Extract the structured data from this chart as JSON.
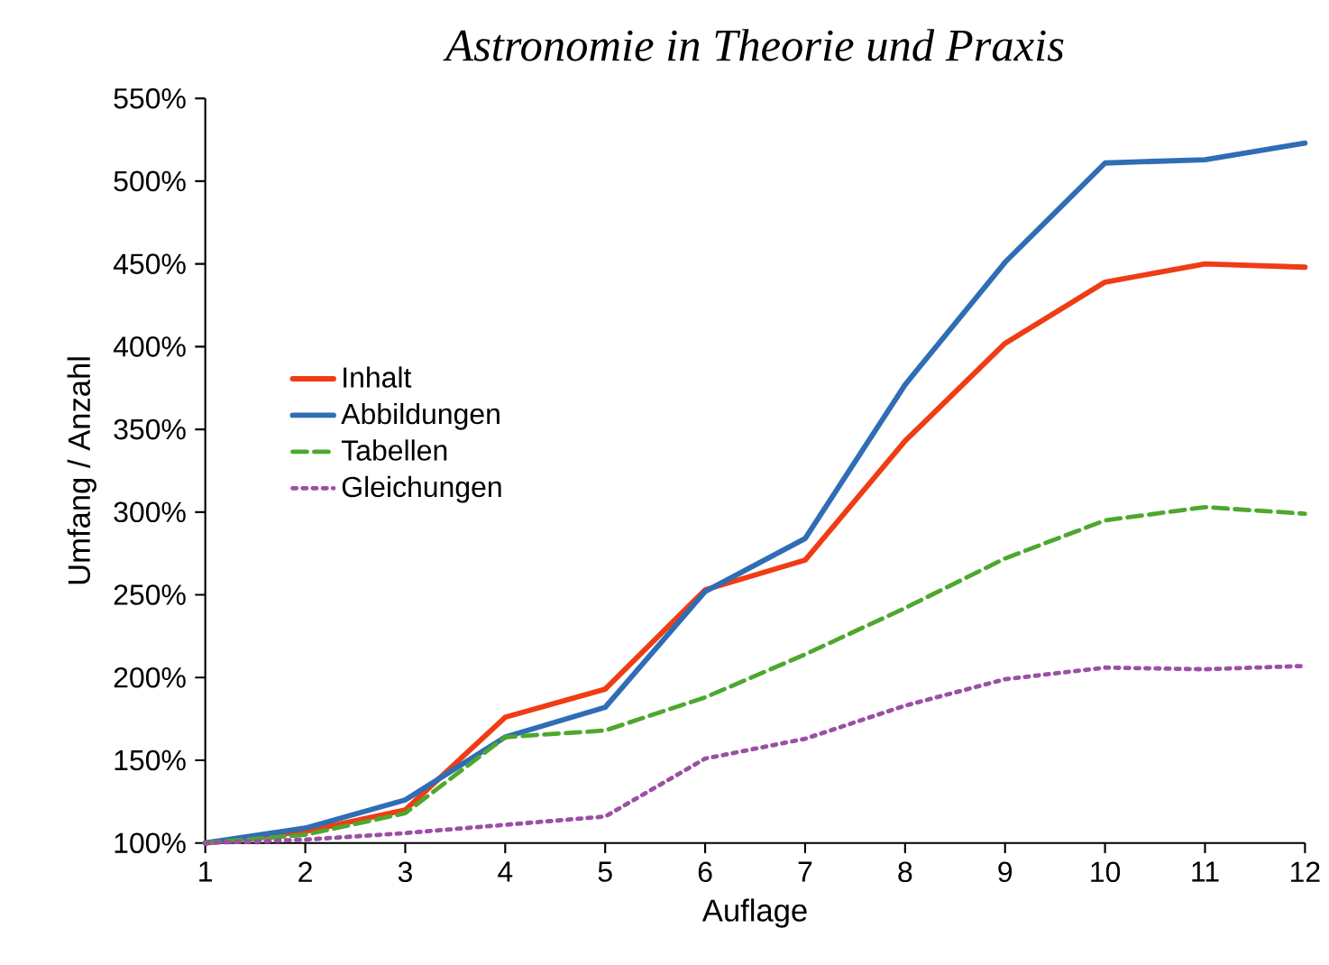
{
  "chart_data": {
    "type": "line",
    "title": "*Astronomie in Theorie und Praxis*",
    "xlabel": "Auflage",
    "ylabel": "Umfang / Anzahl",
    "x": [
      1,
      2,
      3,
      4,
      5,
      6,
      7,
      8,
      9,
      10,
      11,
      12
    ],
    "xlim": [
      1,
      12
    ],
    "xticks": [
      1,
      2,
      3,
      4,
      5,
      6,
      7,
      8,
      9,
      10,
      11,
      12
    ],
    "ylim": [
      100,
      550
    ],
    "yticks": [
      {
        "value": 100,
        "label": "100%"
      },
      {
        "value": 150,
        "label": "150%"
      },
      {
        "value": 200,
        "label": "200%"
      },
      {
        "value": 250,
        "label": "250%"
      },
      {
        "value": 300,
        "label": "300%"
      },
      {
        "value": 350,
        "label": "350%"
      },
      {
        "value": 400,
        "label": "400%"
      },
      {
        "value": 450,
        "label": "450%"
      },
      {
        "value": 500,
        "label": "500%"
      },
      {
        "value": 550,
        "label": "550%"
      }
    ],
    "series": [
      {
        "name": "Inhalt",
        "color": "#f03c14",
        "line_style": "solid",
        "values": [
          100,
          107,
          120,
          176,
          193,
          253,
          271,
          343,
          402,
          439,
          450,
          448
        ]
      },
      {
        "name": "Abbildungen",
        "color": "#2f6db5",
        "line_style": "solid",
        "values": [
          100,
          109,
          126,
          164,
          182,
          252,
          284,
          377,
          451,
          511,
          513,
          523
        ]
      },
      {
        "name": "Tabellen",
        "color": "#4ea72e",
        "line_style": "dashed",
        "values": [
          100,
          105,
          118,
          164,
          168,
          188,
          214,
          242,
          272,
          295,
          303,
          299
        ]
      },
      {
        "name": "Gleichungen",
        "color": "#9b4fa5",
        "line_style": "dotted",
        "values": [
          100,
          102,
          106,
          111,
          116,
          151,
          163,
          183,
          199,
          206,
          205,
          207
        ]
      }
    ],
    "legend": "left",
    "grid": false,
    "marker": "none"
  }
}
